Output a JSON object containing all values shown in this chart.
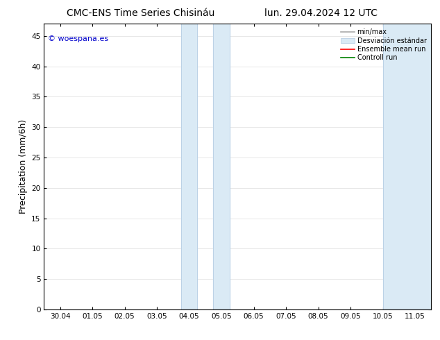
{
  "title_left": "CMC-ENS Time Series Chisináu",
  "title_right": "lun. 29.04.2024 12 UTC",
  "ylabel": "Precipitation (mm/6h)",
  "watermark": "© woespana.es",
  "watermark_color": "#0000cc",
  "x_ticks": [
    "30.04",
    "01.05",
    "02.05",
    "03.05",
    "04.05",
    "05.05",
    "06.05",
    "07.05",
    "08.05",
    "09.05",
    "10.05",
    "11.05"
  ],
  "x_tick_positions": [
    0,
    1,
    2,
    3,
    4,
    5,
    6,
    7,
    8,
    9,
    10,
    11
  ],
  "ylim": [
    0,
    47
  ],
  "xlim": [
    -0.5,
    11.5
  ],
  "yticks": [
    0,
    5,
    10,
    15,
    20,
    25,
    30,
    35,
    40,
    45
  ],
  "shaded_bands": [
    {
      "x_start": 3.75,
      "x_end": 4.25,
      "color": "#daeaf5"
    },
    {
      "x_start": 4.75,
      "x_end": 5.25,
      "color": "#daeaf5"
    },
    {
      "x_start": 10.0,
      "x_end": 11.5,
      "color": "#daeaf5"
    }
  ],
  "band_line_color": "#b0c8e0",
  "background_color": "#ffffff",
  "plot_bg_color": "#ffffff",
  "legend_label1": "min/max",
  "legend_label2": "Desviación estándar",
  "legend_label3": "Ensemble mean run",
  "legend_label4": "Controll run",
  "legend_color1": "#aaaaaa",
  "legend_color2": "#daeaf5",
  "legend_color3": "#ff0000",
  "legend_color4": "#008000",
  "grid_color": "#dddddd",
  "spine_color": "#000000",
  "title_fontsize": 10,
  "tick_fontsize": 7.5,
  "ylabel_fontsize": 9,
  "watermark_fontsize": 8,
  "legend_fontsize": 7
}
